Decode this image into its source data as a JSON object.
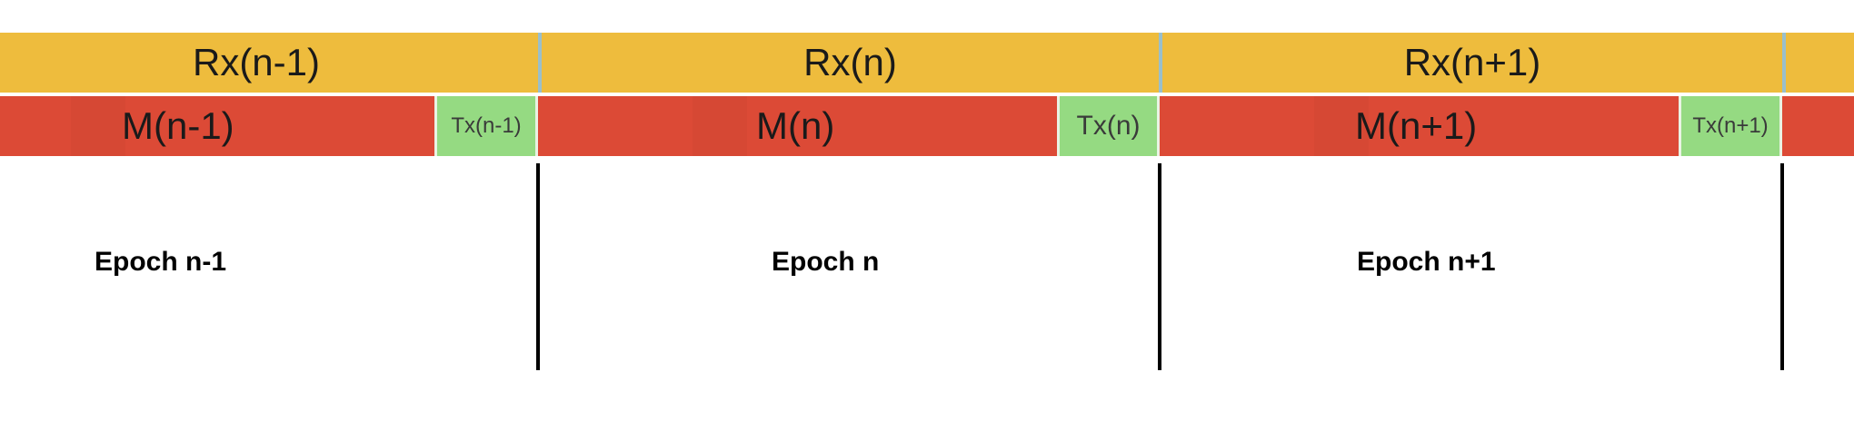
{
  "rx": {
    "labels": [
      "Rx(n-1)",
      "Rx(n)",
      "Rx(n+1)"
    ],
    "color": "#EEBC3D",
    "separator_color": "#9ABFCB"
  },
  "m": {
    "labels": [
      "M(n-1)",
      "M(n)",
      "M(n+1)"
    ],
    "color": "#DC4A36"
  },
  "tx": {
    "labels": [
      "Tx(n-1)",
      "Tx(n)",
      "Tx(n+1)"
    ],
    "color": "#95DA82"
  },
  "epochs": {
    "labels": [
      "Epoch n-1",
      "Epoch n",
      "Epoch n+1"
    ]
  }
}
